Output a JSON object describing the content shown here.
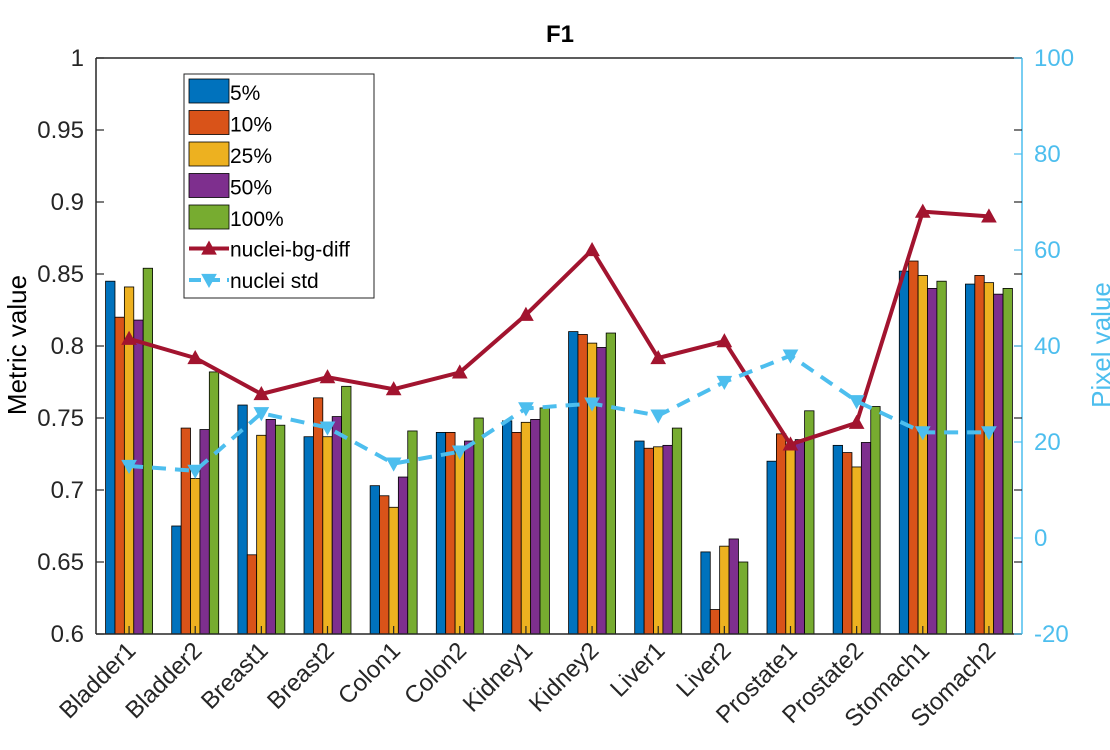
{
  "chart_data": {
    "type": "bar",
    "title": "F1",
    "ylabel": "Metric value",
    "ylabel_right": "Pixel value",
    "ylim": [
      0.6,
      1.0
    ],
    "yticks": [
      "0.6",
      "0.65",
      "0.7",
      "0.75",
      "0.8",
      "0.85",
      "0.9",
      "0.95",
      "1"
    ],
    "ytick_values": [
      0.6,
      0.65,
      0.7,
      0.75,
      0.8,
      0.85,
      0.9,
      0.95,
      1.0
    ],
    "ylim_right": [
      -20,
      100
    ],
    "yticks_right": [
      "-20",
      "0",
      "20",
      "40",
      "60",
      "80",
      "100"
    ],
    "ytick_right_values": [
      -20,
      0,
      20,
      40,
      60,
      80,
      100
    ],
    "categories": [
      "Bladder1",
      "Bladder2",
      "Breast1",
      "Breast2",
      "Colon1",
      "Colon2",
      "Kidney1",
      "Kidney2",
      "Liver1",
      "Liver2",
      "Prostate1",
      "Prostate2",
      "Stomach1",
      "Stomach2"
    ],
    "series": [
      {
        "name": "5%",
        "color": "#0072BD",
        "values": [
          0.845,
          0.675,
          0.759,
          0.737,
          0.703,
          0.74,
          0.748,
          0.81,
          0.734,
          0.657,
          0.72,
          0.731,
          0.852,
          0.843
        ]
      },
      {
        "name": "10%",
        "color": "#D95319",
        "values": [
          0.82,
          0.743,
          0.655,
          0.764,
          0.696,
          0.74,
          0.74,
          0.808,
          0.729,
          0.617,
          0.739,
          0.726,
          0.859,
          0.849
        ]
      },
      {
        "name": "25%",
        "color": "#EDB120",
        "values": [
          0.841,
          0.708,
          0.738,
          0.737,
          0.688,
          0.729,
          0.747,
          0.802,
          0.73,
          0.661,
          0.73,
          0.716,
          0.849,
          0.844
        ]
      },
      {
        "name": "50%",
        "color": "#7E2F8E",
        "values": [
          0.818,
          0.742,
          0.749,
          0.751,
          0.709,
          0.734,
          0.749,
          0.799,
          0.731,
          0.666,
          0.735,
          0.733,
          0.84,
          0.836
        ]
      },
      {
        "name": "100%",
        "color": "#77AC30",
        "values": [
          0.854,
          0.782,
          0.745,
          0.772,
          0.741,
          0.75,
          0.757,
          0.809,
          0.743,
          0.65,
          0.755,
          0.758,
          0.845,
          0.84
        ]
      }
    ],
    "lines": [
      {
        "name": "nuclei-bg-diff",
        "color": "#A2142F",
        "axis": "right",
        "marker": "triangle-up",
        "style": "solid",
        "values": [
          41.5,
          37.5,
          30.0,
          33.5,
          31.0,
          34.5,
          46.5,
          60.0,
          37.5,
          41.0,
          19.5,
          24.0,
          68.0,
          67.0
        ]
      },
      {
        "name": "nuclei std",
        "color": "#4DBEEE",
        "axis": "right",
        "marker": "triangle-down",
        "style": "dashed",
        "values": [
          15.0,
          14.0,
          26.0,
          23.0,
          15.5,
          18.0,
          27.0,
          28.0,
          25.5,
          32.5,
          38.0,
          28.5,
          22.0,
          22.0
        ]
      }
    ]
  }
}
